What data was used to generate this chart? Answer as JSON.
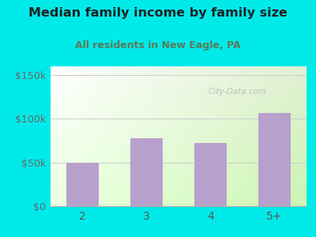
{
  "title": "Median family income by family size",
  "subtitle": "All residents in New Eagle, PA",
  "categories": [
    "2",
    "3",
    "4",
    "5+"
  ],
  "values": [
    50000,
    78000,
    72000,
    107000
  ],
  "bar_color": "#b8a0cc",
  "outer_bg": "#00eaea",
  "title_color": "#222222",
  "subtitle_color": "#5a7a5a",
  "yticks": [
    0,
    50000,
    100000,
    150000
  ],
  "ytick_labels": [
    "$0",
    "$50k",
    "$100k",
    "$150k"
  ],
  "ylim": [
    0,
    160000
  ],
  "watermark": "City-Data.com",
  "xtick_color": "#555555",
  "ytick_color": "#666666",
  "grid_color": "#cccccc"
}
